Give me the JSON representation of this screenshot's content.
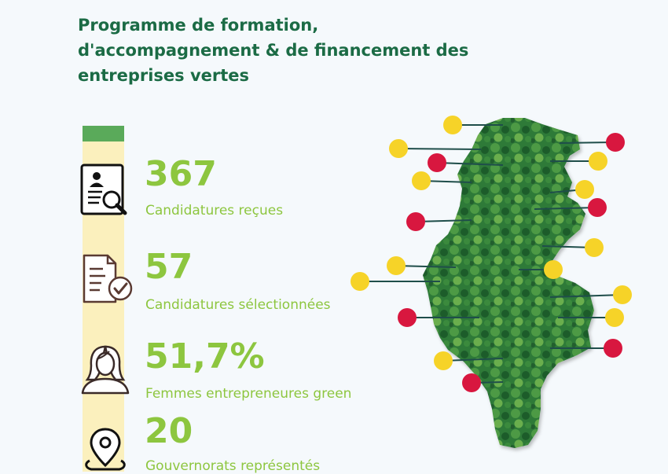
{
  "title": {
    "line1": "Programme de formation,",
    "line2": "d'accompagnement & de financement des",
    "line3": "entreprises vertes"
  },
  "stats": [
    {
      "value": "367",
      "label": "Candidatures reçues",
      "icon": "candidate-profile-search-icon"
    },
    {
      "value": "57",
      "label": "Candidatures sélectionnées",
      "icon": "document-check-icon"
    },
    {
      "value": "51,7%",
      "label": "Femmes entrepreneures green",
      "icon": "woman-icon"
    },
    {
      "value": "20",
      "label": "Gouvernorats représentés",
      "icon": "location-pin-icon"
    }
  ],
  "colors": {
    "title": "#1b6b45",
    "stat": "#8dc63f",
    "track": "#fbf0bd",
    "track_cap": "#5aaa5a",
    "marker_yellow": "#f6d328",
    "marker_red": "#d8173f",
    "leader_line": "#1f4e4a",
    "map_green": "#2f7d3a"
  },
  "map": {
    "subject": "Tunisia map filled with forest imagery",
    "markers_yellow": 11,
    "markers_red": 7
  }
}
